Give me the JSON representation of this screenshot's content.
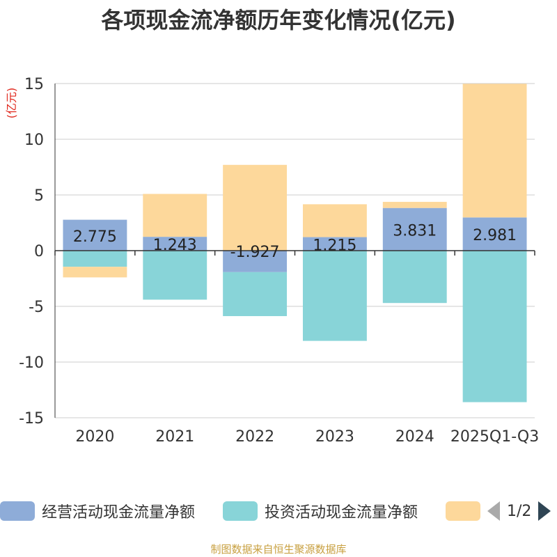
{
  "chart_data": {
    "type": "bar",
    "stacked": true,
    "title": "各项现金流净额历年变化情况(亿元)",
    "ylabel": "(亿元)",
    "xlabel": "",
    "ylim": [
      -15,
      15
    ],
    "yticks": [
      15,
      10,
      5,
      0,
      -5,
      -10,
      -15
    ],
    "grid": true,
    "categories": [
      "2020",
      "2021",
      "2022",
      "2023",
      "2024",
      "2025Q1-Q3"
    ],
    "series": [
      {
        "name": "经营活动现金流量净额",
        "color": "#8eacd8",
        "values": [
          2.775,
          1.243,
          -1.927,
          1.215,
          3.831,
          2.981
        ]
      },
      {
        "name": "投资活动现金流量净额",
        "color": "#88d4d8",
        "values": [
          -1.45,
          -4.4,
          -3.95,
          -8.1,
          -4.7,
          -13.6
        ]
      },
      {
        "name": "",
        "color": "#fdd89b",
        "values": [
          -0.95,
          3.85,
          7.7,
          2.95,
          0.55,
          12.0
        ]
      }
    ],
    "data_labels": [
      "2.775",
      "1.243",
      "-1.927",
      "1.215",
      "3.831",
      "2.981"
    ],
    "legend": {
      "placement": "bottom",
      "page": "1/2"
    }
  },
  "footer": "制图数据来自恒生聚源数据库"
}
